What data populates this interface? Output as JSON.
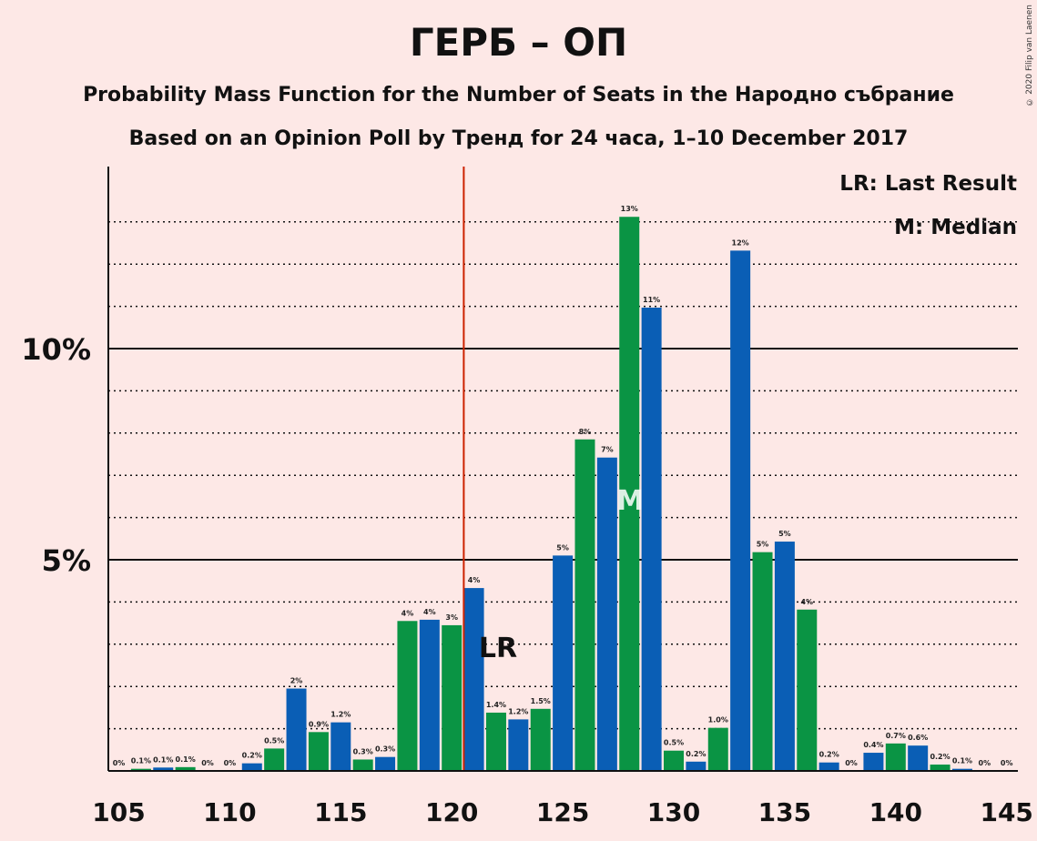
{
  "chart_data": {
    "type": "bar",
    "title": "ГЕРБ – ОП",
    "subtitle": "Probability Mass Function for the Number of Seats in the Народно събрание",
    "subtitle2": "Based on an Opinion Poll by Тренд for 24 часа, 1–10 December 2017",
    "copyright": "© 2020 Filip van Laenen",
    "legend": [
      "LR: Last Result",
      "M: Median"
    ],
    "legend_placement": "top-right",
    "x": [
      105,
      106,
      107,
      108,
      109,
      110,
      111,
      112,
      113,
      114,
      115,
      116,
      117,
      118,
      119,
      120,
      121,
      122,
      123,
      124,
      125,
      126,
      127,
      128,
      129,
      130,
      131,
      132,
      133,
      134,
      135,
      136,
      137,
      138,
      139,
      140,
      141,
      142,
      143,
      144,
      145
    ],
    "values": [
      0,
      0.05,
      0.08,
      0.09,
      0,
      0,
      0.18,
      0.53,
      1.95,
      0.92,
      1.15,
      0.27,
      0.33,
      3.55,
      3.58,
      3.45,
      4.33,
      1.38,
      1.22,
      1.47,
      5.1,
      7.85,
      7.42,
      13.12,
      10.97,
      0.48,
      0.22,
      1.02,
      12.32,
      5.18,
      5.43,
      3.82,
      0.2,
      0,
      0.43,
      0.65,
      0.6,
      0.15,
      0.05,
      0,
      0
    ],
    "value_labels": [
      "0%",
      "0.1%",
      "0.1%",
      "0.1%",
      "0%",
      "0%",
      "0.2%",
      "0.5%",
      "2%",
      "0.9%",
      "1.2%",
      "0.3%",
      "0.3%",
      "4%",
      "4%",
      "3%",
      "4%",
      "1.4%",
      "1.2%",
      "1.5%",
      "5%",
      "8%",
      "7%",
      "13%",
      "11%",
      "0.5%",
      "0.2%",
      "1.0%",
      "12%",
      "5%",
      "5%",
      "4%",
      "0.2%",
      "0%",
      "0.4%",
      "0.7%",
      "0.6%",
      "0.2%",
      "0.1%",
      "0%",
      "0%"
    ],
    "x_ticks": [
      "105",
      "110",
      "115",
      "120",
      "125",
      "130",
      "135",
      "140",
      "145"
    ],
    "y_ticks": [
      "5%",
      "10%"
    ],
    "ylim": [
      0,
      14.3
    ],
    "last_result": 121,
    "last_result_label": "LR",
    "median": 128,
    "median_label": "M",
    "colors": {
      "odd_seat": "#0a5eb5",
      "even_seat": "#0a9444",
      "last_result_line": "#cc2200",
      "background": "#fde8e6"
    }
  }
}
